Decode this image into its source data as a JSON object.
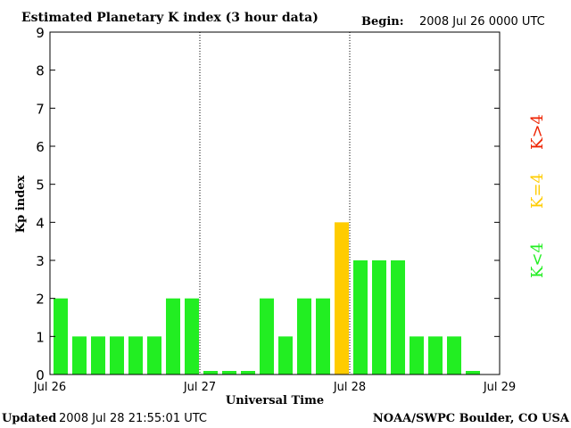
{
  "chart_data": {
    "type": "bar",
    "title": "Estimated Planetary K index (3 hour data)",
    "begin_label": "Begin:",
    "begin_value": "2008 Jul 26 0000 UTC",
    "ylabel": "Kp index",
    "xlabel": "Universal Time",
    "ylim": [
      0,
      9
    ],
    "yticks": [
      "0",
      "1",
      "2",
      "3",
      "4",
      "5",
      "6",
      "7",
      "8",
      "9"
    ],
    "xticks": [
      "Jul 26",
      "Jul 27",
      "Jul 28",
      "Jul 29"
    ],
    "interval_hours": 3,
    "values": [
      2,
      1,
      1,
      1,
      1,
      1,
      2,
      2,
      0,
      0,
      0,
      2,
      1,
      2,
      2,
      4,
      3,
      3,
      3,
      1,
      1,
      1,
      0
    ],
    "colors": {
      "below": "#22ee22",
      "equal": "#ffcc00",
      "above": "#ee2200",
      "axis": "#000000"
    },
    "legend": [
      {
        "label": "K>4",
        "color": "#ee2200"
      },
      {
        "label": "K=4",
        "color": "#ffcc00"
      },
      {
        "label": "K<4",
        "color": "#22ee22"
      }
    ],
    "grid": "dotted vertical lines at day boundaries"
  },
  "footer": {
    "updated_label": "Updated",
    "updated_value": "2008 Jul 28 21:55:01 UTC",
    "source": "NOAA/SWPC Boulder, CO USA"
  }
}
